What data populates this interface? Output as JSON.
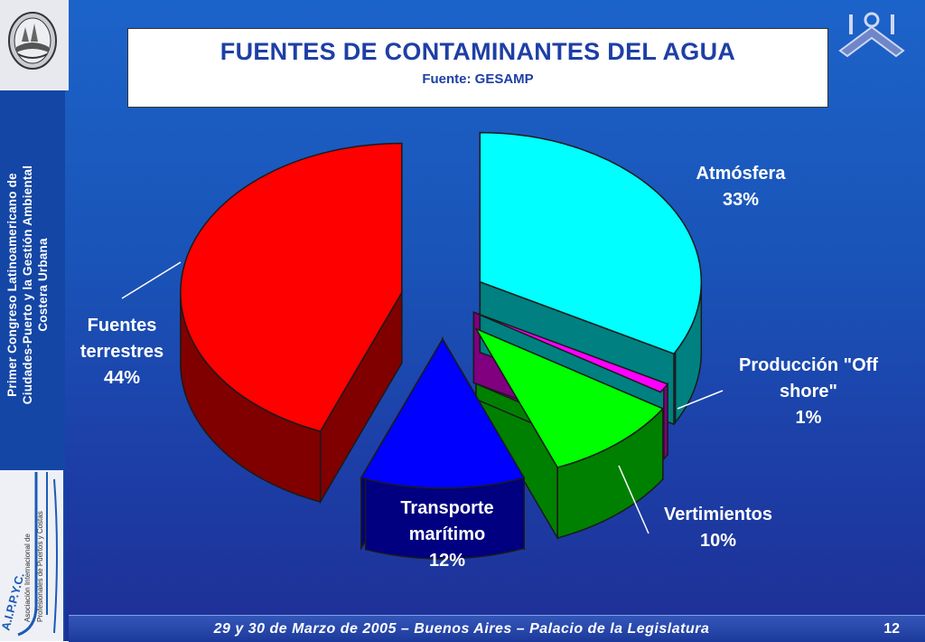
{
  "slide": {
    "title": "FUENTES DE CONTAMINANTES DEL AGUA",
    "subtitle": "Fuente: GESAMP",
    "side_title_line1": "Primer Congreso Latinoamericano de",
    "side_title_line2": "Ciudades-Puerto y la Gestión Ambiental",
    "side_title_line3": "Costera Urbana",
    "side_logo_text": "A.I.P.P.Y.C.",
    "side_logo_line1": "Asociación Internacional de",
    "side_logo_line2": "Profesionales de Puertos y Costas",
    "footer": "29 y 30 de Marzo de 2005 – Buenos Aires – Palacio de la Legislatura",
    "page_number": "12"
  },
  "icons": {
    "crest": "city-crest-icon",
    "anchor": "anchor-logo-icon"
  },
  "chart_data": {
    "type": "pie",
    "style": "3d-exploded",
    "title": "FUENTES DE CONTAMINANTES DEL AGUA",
    "subtitle": "Fuente: GESAMP",
    "slices": [
      {
        "label": "Atmósfera",
        "value": 33,
        "value_label": "33%",
        "color": "#00ffff",
        "side_color": "#008080"
      },
      {
        "label": "Producción \"Off shore\"",
        "value": 1,
        "value_label": "1%",
        "color": "#ff00ff",
        "side_color": "#800080"
      },
      {
        "label": "Vertimientos",
        "value": 10,
        "value_label": "10%",
        "color": "#00ff00",
        "side_color": "#008000"
      },
      {
        "label": "Transporte marítimo",
        "value": 12,
        "value_label": "12%",
        "color": "#0000ff",
        "side_color": "#000080"
      },
      {
        "label": "Fuentes terrestres",
        "value": 44,
        "value_label": "44%",
        "color": "#ff0000",
        "side_color": "#800000"
      }
    ],
    "label_lines": {
      "Atmósfera": [
        "Atmósfera"
      ],
      "Producción \"Off shore\"": [
        "Producción \"Off",
        "shore\""
      ],
      "Vertimientos": [
        "Vertimientos"
      ],
      "Transporte marítimo": [
        "Transporte",
        "marítimo"
      ],
      "Fuentes terrestres": [
        "Fuentes",
        "terrestres"
      ]
    }
  }
}
